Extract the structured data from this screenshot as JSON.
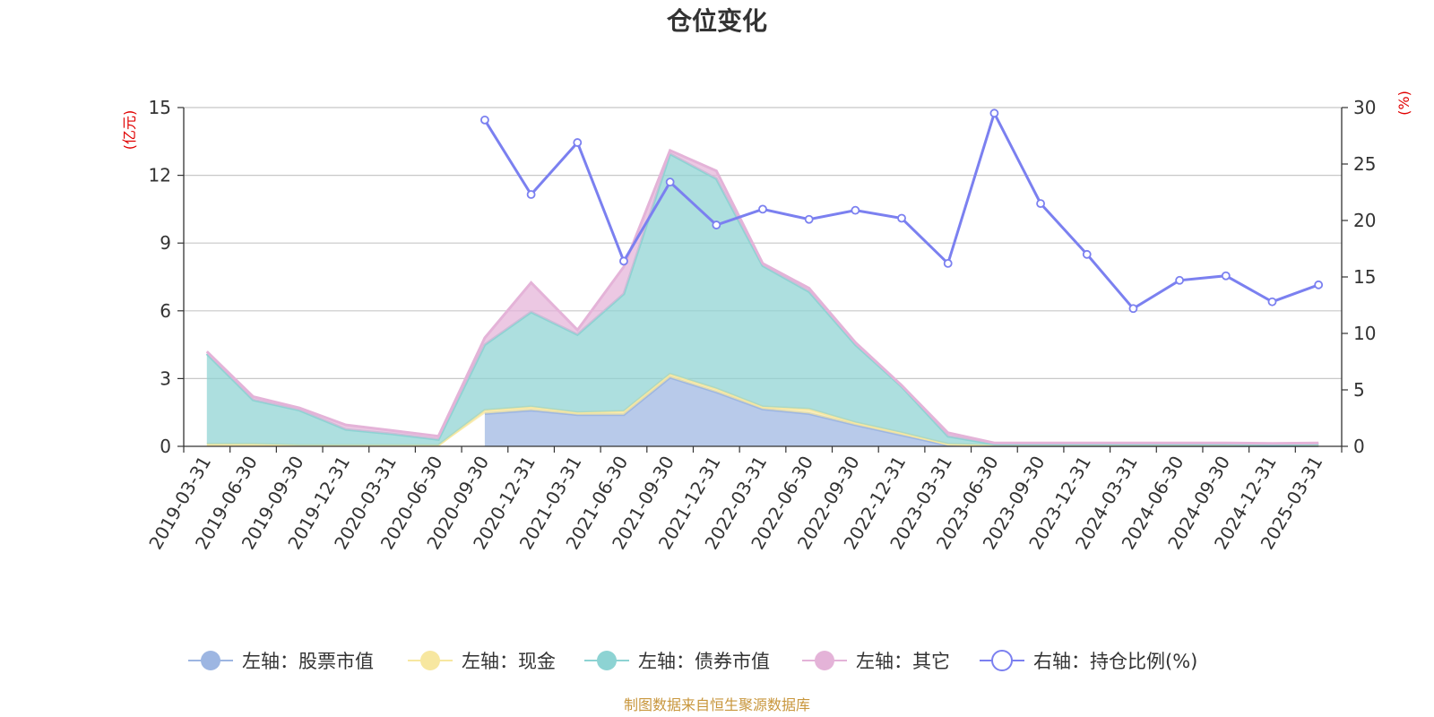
{
  "title": "仓位变化",
  "source_note": "制图数据来自恒生聚源数据库",
  "colors": {
    "stock": "#9db6e2",
    "cash": "#f7e7a0",
    "bond": "#8dd3d3",
    "other": "#e4b3d8",
    "ratio": "#7b80f0",
    "unit_label": "#e00000",
    "source": "#c8963c",
    "grid": "#c8c8c8"
  },
  "chart_data": {
    "type": "area",
    "title": "仓位变化",
    "categories": [
      "2019-03-31",
      "2019-06-30",
      "2019-09-30",
      "2019-12-31",
      "2020-03-31",
      "2020-06-30",
      "2020-09-30",
      "2020-12-31",
      "2021-03-31",
      "2021-06-30",
      "2021-09-30",
      "2021-12-31",
      "2022-03-31",
      "2022-06-30",
      "2022-09-30",
      "2022-12-31",
      "2023-03-31",
      "2023-06-30",
      "2023-09-30",
      "2023-12-31",
      "2024-03-31",
      "2024-06-30",
      "2024-09-30",
      "2024-12-31",
      "2025-03-31"
    ],
    "y_left": {
      "label": "(亿元)",
      "min": 0,
      "max": 15,
      "ticks": [
        "0",
        "3",
        "6",
        "9",
        "12",
        "15"
      ]
    },
    "y_right": {
      "label": "(%)",
      "min": 0,
      "max": 30,
      "ticks": [
        "0",
        "5",
        "10",
        "15",
        "20",
        "25",
        "30"
      ]
    },
    "grid": true,
    "legend_position": "bottom",
    "series": [
      {
        "key": "stock",
        "name": "左轴：股票市值",
        "axis": "left",
        "type": "area",
        "values": [
          null,
          null,
          null,
          null,
          null,
          null,
          1.45,
          1.6,
          1.4,
          1.4,
          3.05,
          2.4,
          1.65,
          1.45,
          0.95,
          0.5,
          0.05,
          0.02,
          0.02,
          0.02,
          0.02,
          0.02,
          0.02,
          0.02,
          0.02
        ]
      },
      {
        "key": "cash",
        "name": "左轴：现金",
        "axis": "left",
        "type": "area",
        "values": [
          0.1,
          0.1,
          0.05,
          0.05,
          0.05,
          0.05,
          0.15,
          0.15,
          0.1,
          0.15,
          0.15,
          0.15,
          0.1,
          0.2,
          0.1,
          0.1,
          0.05,
          0.03,
          0.03,
          0.03,
          0.03,
          0.03,
          0.03,
          0.03,
          0.03
        ]
      },
      {
        "key": "bond",
        "name": "左轴：债券市值",
        "axis": "left",
        "type": "area",
        "values": [
          4.0,
          1.95,
          1.55,
          0.7,
          0.5,
          0.25,
          2.9,
          4.2,
          3.45,
          5.2,
          9.75,
          9.3,
          6.25,
          5.2,
          3.45,
          2.05,
          0.35,
          0.05,
          0.05,
          0.05,
          0.05,
          0.05,
          0.05,
          0.03,
          0.05
        ]
      },
      {
        "key": "other",
        "name": "左轴：其它",
        "axis": "left",
        "type": "area",
        "values": [
          0.1,
          0.15,
          0.1,
          0.2,
          0.15,
          0.15,
          0.3,
          1.3,
          0.2,
          1.2,
          0.15,
          0.35,
          0.1,
          0.15,
          0.1,
          0.05,
          0.15,
          0.05,
          0.05,
          0.05,
          0.05,
          0.05,
          0.05,
          0.05,
          0.05
        ]
      },
      {
        "key": "ratio",
        "name": "右轴：持仓比例(%)",
        "axis": "right",
        "type": "line",
        "values": [
          null,
          null,
          null,
          null,
          null,
          null,
          28.9,
          22.3,
          26.9,
          16.4,
          23.4,
          19.6,
          21.0,
          20.1,
          20.9,
          20.2,
          16.2,
          29.5,
          21.5,
          17.0,
          12.2,
          14.7,
          15.1,
          12.8,
          14.3
        ]
      }
    ]
  }
}
